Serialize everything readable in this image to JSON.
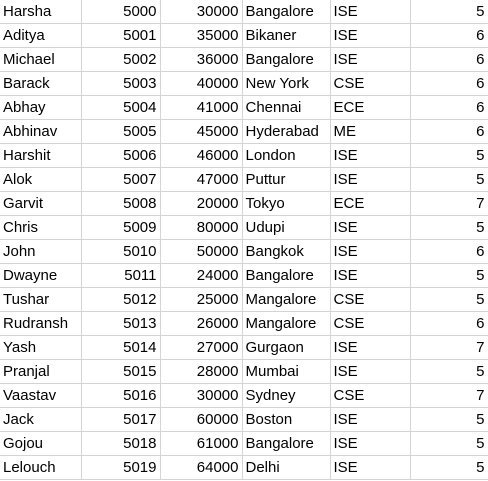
{
  "sheet": {
    "rows": [
      {
        "name": "Harsha",
        "id": "5000",
        "salary": "30000",
        "city": "Bangalore",
        "dept": "ISE",
        "score": "5"
      },
      {
        "name": "Aditya",
        "id": "5001",
        "salary": "35000",
        "city": "Bikaner",
        "dept": "ISE",
        "score": "6"
      },
      {
        "name": "Michael",
        "id": "5002",
        "salary": "36000",
        "city": "Bangalore",
        "dept": "ISE",
        "score": "6"
      },
      {
        "name": "Barack",
        "id": "5003",
        "salary": "40000",
        "city": "New York",
        "dept": "CSE",
        "score": "6"
      },
      {
        "name": "Abhay",
        "id": "5004",
        "salary": "41000",
        "city": "Chennai",
        "dept": "ECE",
        "score": "6"
      },
      {
        "name": "Abhinav",
        "id": "5005",
        "salary": "45000",
        "city": "Hyderabad",
        "dept": "ME",
        "score": "6"
      },
      {
        "name": "Harshit",
        "id": "5006",
        "salary": "46000",
        "city": "London",
        "dept": "ISE",
        "score": "5"
      },
      {
        "name": "Alok",
        "id": "5007",
        "salary": "47000",
        "city": "Puttur",
        "dept": "ISE",
        "score": "5"
      },
      {
        "name": "Garvit",
        "id": "5008",
        "salary": "20000",
        "city": "Tokyo",
        "dept": "ECE",
        "score": "7"
      },
      {
        "name": "Chris",
        "id": "5009",
        "salary": "80000",
        "city": "Udupi",
        "dept": "ISE",
        "score": "5"
      },
      {
        "name": "John",
        "id": "5010",
        "salary": "50000",
        "city": "Bangkok",
        "dept": "ISE",
        "score": "6"
      },
      {
        "name": "Dwayne",
        "id": "5011",
        "salary": "24000",
        "city": "Bangalore",
        "dept": "ISE",
        "score": "5"
      },
      {
        "name": "Tushar",
        "id": "5012",
        "salary": "25000",
        "city": "Mangalore",
        "dept": "CSE",
        "score": "5"
      },
      {
        "name": "Rudransh",
        "id": "5013",
        "salary": "26000",
        "city": "Mangalore",
        "dept": "CSE",
        "score": "6"
      },
      {
        "name": "Yash",
        "id": "5014",
        "salary": "27000",
        "city": "Gurgaon",
        "dept": "ISE",
        "score": "7"
      },
      {
        "name": "Pranjal",
        "id": "5015",
        "salary": "28000",
        "city": "Mumbai",
        "dept": "ISE",
        "score": "5"
      },
      {
        "name": "Vaastav",
        "id": "5016",
        "salary": "30000",
        "city": "Sydney",
        "dept": "CSE",
        "score": "7"
      },
      {
        "name": "Jack",
        "id": "5017",
        "salary": "60000",
        "city": "Boston",
        "dept": "ISE",
        "score": "5"
      },
      {
        "name": "Gojou",
        "id": "5018",
        "salary": "61000",
        "city": "Bangalore",
        "dept": "ISE",
        "score": "5"
      },
      {
        "name": "Lelouch",
        "id": "5019",
        "salary": "64000",
        "city": "Delhi",
        "dept": "ISE",
        "score": "5"
      }
    ]
  }
}
